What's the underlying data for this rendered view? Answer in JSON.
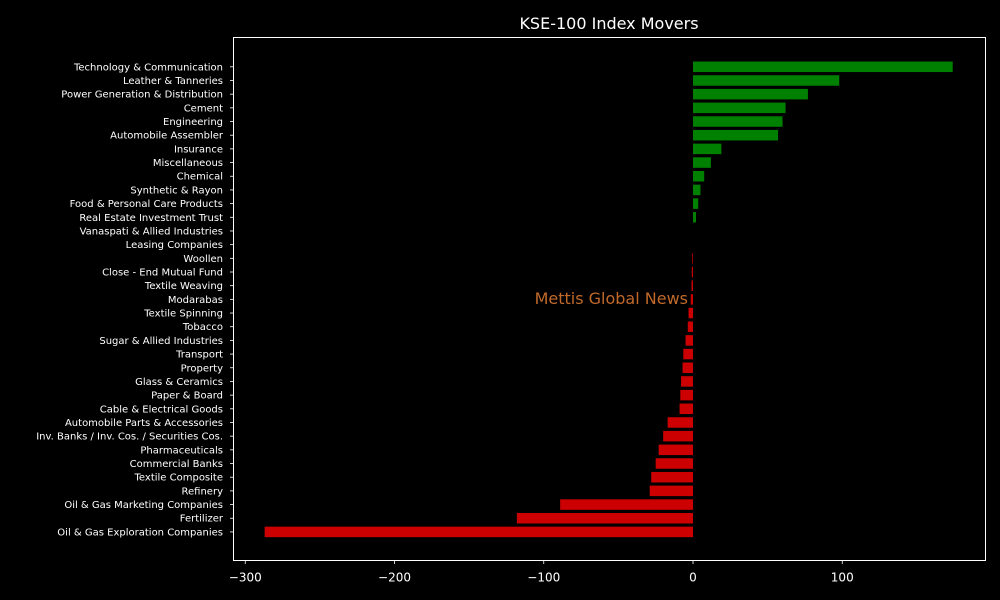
{
  "chart_data": {
    "type": "bar",
    "orientation": "horizontal",
    "title": "KSE-100 Index Movers",
    "watermark": "Mettis Global News",
    "xlim": [
      -305,
      197
    ],
    "x_ticks": [
      -300,
      -200,
      -100,
      0,
      100
    ],
    "x_tick_labels": [
      "−300",
      "−200",
      "−100",
      "0",
      "100"
    ],
    "positive_color": "#008000",
    "negative_color": "#cc0000",
    "background": "#000000",
    "categories": [
      "Technology & Communication",
      "Leather & Tanneries",
      "Power Generation & Distribution",
      "Cement",
      "Engineering",
      "Automobile Assembler",
      "Insurance",
      "Miscellaneous",
      "Chemical",
      "Synthetic & Rayon",
      "Food & Personal Care Products",
      "Real Estate Investment Trust",
      "Vanaspati & Allied Industries",
      "Leasing Companies",
      "Woollen",
      "Close - End Mutual Fund",
      "Textile Weaving",
      "Modarabas",
      "Textile Spinning",
      "Tobacco",
      "Sugar & Allied Industries",
      "Transport",
      "Property",
      "Glass & Ceramics",
      "Paper & Board",
      "Cable & Electrical Goods",
      "Automobile Parts & Accessories",
      "Inv. Banks / Inv. Cos. / Securities Cos.",
      "Pharmaceuticals",
      "Commercial Banks",
      "Textile Composite",
      "Refinery",
      "Oil & Gas Marketing Companies",
      "Fertilizer",
      "Oil & Gas Exploration Companies"
    ],
    "values": [
      174,
      98,
      77,
      62,
      60,
      57,
      19,
      12,
      7.5,
      5,
      3.5,
      2,
      0,
      0,
      -0.5,
      -0.8,
      -1,
      -1.5,
      -3,
      -3.5,
      -5,
      -6.5,
      -7,
      -8,
      -8.5,
      -9,
      -17,
      -20,
      -23,
      -25,
      -28,
      -29,
      -89,
      -118,
      -287
    ]
  }
}
